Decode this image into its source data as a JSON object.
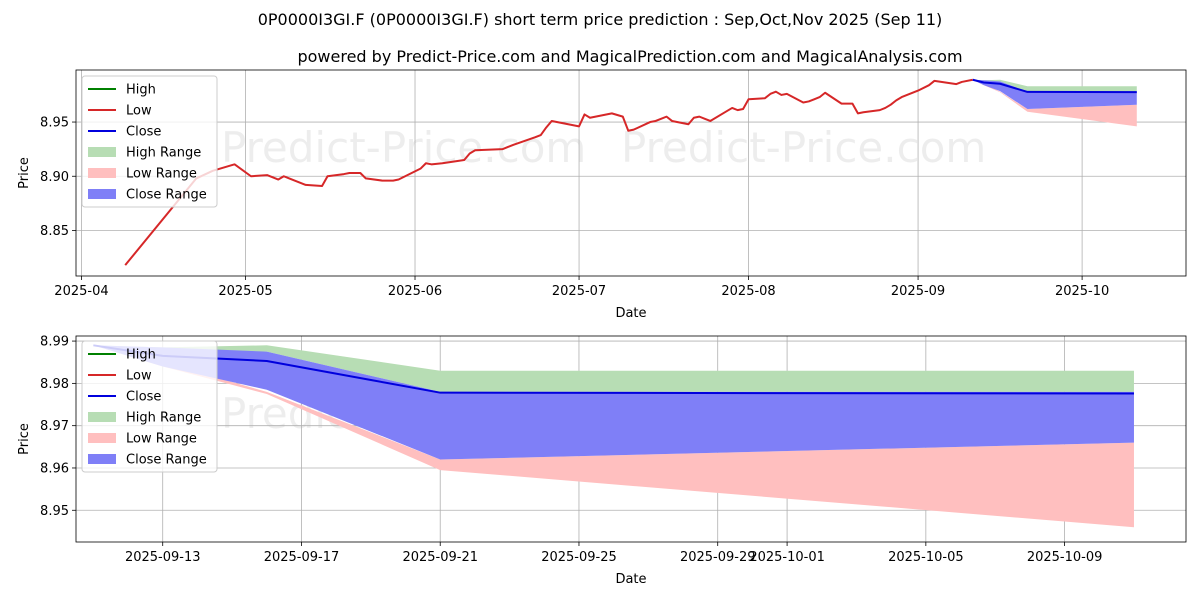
{
  "title": "0P0000I3GI.F (0P0000I3GI.F) short term price prediction : Sep,Oct,Nov 2025 (Sep 11)",
  "subtitle": "powered by Predict-Price.com and MagicalPrediction.com and MagicalAnalysis.com",
  "watermark": "Predict-Price.com",
  "colors": {
    "high": "#008000",
    "low": "#d62728",
    "close": "#0000dd",
    "high_range": "#b7ddb4",
    "low_range": "#ffbfbf",
    "close_range": "#7f7ff7",
    "grid": "#b0b0b0"
  },
  "chart_data": [
    {
      "type": "line",
      "xlabel": "Date",
      "ylabel": "Price",
      "xlim": [
        "2025-03-31",
        "2025-10-20"
      ],
      "ylim": [
        8.808,
        8.998
      ],
      "x_ticks": [
        "2025-04-01",
        "2025-05-01",
        "2025-06-01",
        "2025-07-01",
        "2025-08-01",
        "2025-09-01",
        "2025-10-01"
      ],
      "x_tick_labels": [
        "2025-04",
        "2025-05",
        "2025-06",
        "2025-07",
        "2025-08",
        "2025-09",
        "2025-10"
      ],
      "y_ticks": [
        8.85,
        8.9,
        8.95
      ],
      "y_tick_labels": [
        "8.85",
        "8.90",
        "8.95"
      ],
      "grid": true,
      "legend_position": "top-left",
      "legend": [
        "High",
        "Low",
        "Close",
        "High Range",
        "Low Range",
        "Close Range"
      ],
      "series": [
        {
          "name": "Low",
          "x": [
            "2025-04-09",
            "2025-04-22",
            "2025-04-25",
            "2025-04-29",
            "2025-05-02",
            "2025-05-05",
            "2025-05-07",
            "2025-05-08",
            "2025-05-09",
            "2025-05-12",
            "2025-05-15",
            "2025-05-16",
            "2025-05-19",
            "2025-05-20",
            "2025-05-22",
            "2025-05-23",
            "2025-05-26",
            "2025-05-28",
            "2025-05-29",
            "2025-06-02",
            "2025-06-03",
            "2025-06-04",
            "2025-06-06",
            "2025-06-10",
            "2025-06-11",
            "2025-06-12",
            "2025-06-17",
            "2025-06-18",
            "2025-06-19",
            "2025-06-23",
            "2025-06-24",
            "2025-06-25",
            "2025-06-26",
            "2025-07-01",
            "2025-07-02",
            "2025-07-03",
            "2025-07-07",
            "2025-07-09",
            "2025-07-10",
            "2025-07-11",
            "2025-07-14",
            "2025-07-15",
            "2025-07-16",
            "2025-07-17",
            "2025-07-18",
            "2025-07-21",
            "2025-07-22",
            "2025-07-23",
            "2025-07-24",
            "2025-07-25",
            "2025-07-28",
            "2025-07-29",
            "2025-07-30",
            "2025-07-31",
            "2025-08-01",
            "2025-08-04",
            "2025-08-05",
            "2025-08-06",
            "2025-08-07",
            "2025-08-08",
            "2025-08-11",
            "2025-08-12",
            "2025-08-13",
            "2025-08-14",
            "2025-08-15",
            "2025-08-18",
            "2025-08-19",
            "2025-08-20",
            "2025-08-21",
            "2025-08-22",
            "2025-08-25",
            "2025-08-26",
            "2025-08-27",
            "2025-08-28",
            "2025-08-29",
            "2025-09-01",
            "2025-09-03",
            "2025-09-04",
            "2025-09-08",
            "2025-09-09",
            "2025-09-11"
          ],
          "values": [
            8.818,
            8.898,
            8.905,
            8.911,
            8.9,
            8.901,
            8.897,
            8.9,
            8.898,
            8.892,
            8.891,
            8.9,
            8.902,
            8.903,
            8.903,
            8.898,
            8.896,
            8.896,
            8.897,
            8.907,
            8.912,
            8.911,
            8.912,
            8.915,
            8.921,
            8.924,
            8.925,
            8.927,
            8.929,
            8.936,
            8.938,
            8.945,
            8.951,
            8.946,
            8.957,
            8.954,
            8.958,
            8.955,
            8.942,
            8.943,
            8.95,
            8.951,
            8.953,
            8.955,
            8.951,
            8.948,
            8.954,
            8.955,
            8.953,
            8.951,
            8.96,
            8.963,
            8.961,
            8.962,
            8.971,
            8.972,
            8.976,
            8.978,
            8.975,
            8.976,
            8.968,
            8.969,
            8.971,
            8.973,
            8.977,
            8.967,
            8.967,
            8.967,
            8.958,
            8.959,
            8.961,
            8.963,
            8.966,
            8.97,
            8.973,
            8.979,
            8.984,
            8.988,
            8.985,
            8.987,
            8.989
          ]
        },
        {
          "name": "High Range",
          "x": [
            "2025-09-11",
            "2025-09-13",
            "2025-09-16",
            "2025-09-21",
            "2025-10-11"
          ],
          "upper": [
            8.989,
            8.9885,
            8.989,
            8.983,
            8.983
          ],
          "lower": [
            8.989,
            8.9875,
            8.9875,
            8.978,
            8.978
          ]
        },
        {
          "name": "Low Range",
          "x": [
            "2025-09-11",
            "2025-09-13",
            "2025-09-16",
            "2025-09-21",
            "2025-10-11"
          ],
          "upper": [
            8.989,
            8.985,
            8.978,
            8.962,
            8.966
          ],
          "lower": [
            8.989,
            8.984,
            8.9775,
            8.9595,
            8.946
          ]
        },
        {
          "name": "Close Range",
          "x": [
            "2025-09-11",
            "2025-09-13",
            "2025-09-16",
            "2025-09-21",
            "2025-10-11"
          ],
          "upper": [
            8.989,
            8.9885,
            8.9875,
            8.978,
            8.978
          ],
          "lower": [
            8.989,
            8.984,
            8.9785,
            8.962,
            8.966
          ]
        },
        {
          "name": "Close",
          "x": [
            "2025-09-11",
            "2025-09-13",
            "2025-09-16",
            "2025-09-21",
            "2025-10-11"
          ],
          "values": [
            8.989,
            8.9865,
            8.9853,
            8.9778,
            8.9776
          ]
        }
      ]
    },
    {
      "type": "line",
      "xlabel": "Date",
      "ylabel": "Price",
      "xlim": [
        "2025-09-10 12:00",
        "2025-10-12 12:00"
      ],
      "ylim": [
        8.9425,
        8.9912
      ],
      "x_ticks": [
        "2025-09-13",
        "2025-09-17",
        "2025-09-21",
        "2025-09-25",
        "2025-09-29",
        "2025-10-01",
        "2025-10-05",
        "2025-10-09"
      ],
      "x_tick_labels": [
        "2025-09-13",
        "2025-09-17",
        "2025-09-21",
        "2025-09-25",
        "2025-09-29",
        "2025-10-01",
        "2025-10-05",
        "2025-10-09"
      ],
      "y_ticks": [
        8.95,
        8.96,
        8.97,
        8.98,
        8.99
      ],
      "y_tick_labels": [
        "8.95",
        "8.96",
        "8.97",
        "8.98",
        "8.99"
      ],
      "grid": true,
      "legend_position": "top-left",
      "legend": [
        "High",
        "Low",
        "Close",
        "High Range",
        "Low Range",
        "Close Range"
      ],
      "series": [
        {
          "name": "High Range",
          "x": [
            "2025-09-11",
            "2025-09-13",
            "2025-09-16",
            "2025-09-21",
            "2025-10-11"
          ],
          "upper": [
            8.989,
            8.9885,
            8.989,
            8.983,
            8.983
          ],
          "lower": [
            8.989,
            8.9875,
            8.9875,
            8.978,
            8.978
          ]
        },
        {
          "name": "Low Range",
          "x": [
            "2025-09-11",
            "2025-09-13",
            "2025-09-16",
            "2025-09-21",
            "2025-10-11"
          ],
          "upper": [
            8.989,
            8.985,
            8.978,
            8.962,
            8.966
          ],
          "lower": [
            8.989,
            8.984,
            8.9775,
            8.9595,
            8.946
          ]
        },
        {
          "name": "Close Range",
          "x": [
            "2025-09-11",
            "2025-09-13",
            "2025-09-16",
            "2025-09-21",
            "2025-10-11"
          ],
          "upper": [
            8.989,
            8.9885,
            8.9875,
            8.978,
            8.978
          ],
          "lower": [
            8.989,
            8.984,
            8.9785,
            8.962,
            8.966
          ]
        },
        {
          "name": "Close",
          "x": [
            "2025-09-11",
            "2025-09-13",
            "2025-09-16",
            "2025-09-21",
            "2025-10-11"
          ],
          "values": [
            8.989,
            8.9865,
            8.9853,
            8.9778,
            8.9776
          ]
        }
      ]
    }
  ]
}
